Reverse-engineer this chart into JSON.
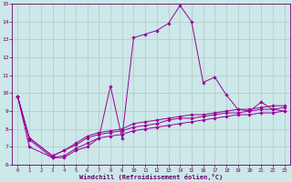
{
  "xlabel": "Windchill (Refroidissement éolien,°C)",
  "background_color": "#cce8e8",
  "grid_color": "#b0c8c8",
  "line_color": "#990099",
  "tick_color": "#660066",
  "spine_color": "#660066",
  "xlim": [
    -0.5,
    23.5
  ],
  "ylim": [
    6,
    15
  ],
  "xticks": [
    0,
    1,
    2,
    3,
    4,
    5,
    6,
    7,
    8,
    9,
    10,
    11,
    12,
    13,
    14,
    15,
    16,
    17,
    18,
    19,
    20,
    21,
    22,
    23
  ],
  "yticks": [
    6,
    7,
    8,
    9,
    10,
    11,
    12,
    13,
    14,
    15
  ],
  "series": [
    {
      "x": [
        0,
        1,
        3,
        4,
        5,
        6,
        7,
        8,
        9,
        10,
        11,
        12,
        13,
        14,
        15,
        16,
        17,
        18,
        19,
        20,
        21,
        22,
        23
      ],
      "y": [
        9.8,
        7.0,
        6.4,
        6.4,
        6.8,
        7.0,
        7.5,
        10.4,
        7.5,
        13.1,
        13.3,
        13.5,
        13.9,
        14.9,
        14.0,
        10.6,
        10.9,
        9.9,
        9.1,
        9.0,
        9.5,
        9.1,
        9.0
      ]
    },
    {
      "x": [
        0,
        1,
        3,
        4,
        5,
        6,
        7,
        8,
        9,
        10,
        11,
        12,
        13,
        14,
        15,
        16,
        17,
        18,
        19,
        20,
        21,
        22,
        23
      ],
      "y": [
        9.8,
        7.5,
        6.5,
        6.8,
        7.2,
        7.6,
        7.8,
        7.9,
        8.0,
        8.3,
        8.4,
        8.5,
        8.6,
        8.7,
        8.8,
        8.8,
        8.9,
        9.0,
        9.1,
        9.1,
        9.2,
        9.3,
        9.3
      ]
    },
    {
      "x": [
        0,
        1,
        3,
        4,
        5,
        6,
        7,
        8,
        9,
        10,
        11,
        12,
        13,
        14,
        15,
        16,
        17,
        18,
        19,
        20,
        21,
        22,
        23
      ],
      "y": [
        9.8,
        7.5,
        6.5,
        6.8,
        7.1,
        7.5,
        7.7,
        7.8,
        7.9,
        8.1,
        8.2,
        8.3,
        8.5,
        8.6,
        8.6,
        8.7,
        8.8,
        8.9,
        8.9,
        9.0,
        9.1,
        9.1,
        9.2
      ]
    },
    {
      "x": [
        0,
        1,
        3,
        4,
        5,
        6,
        7,
        8,
        9,
        10,
        11,
        12,
        13,
        14,
        15,
        16,
        17,
        18,
        19,
        20,
        21,
        22,
        23
      ],
      "y": [
        9.8,
        7.4,
        6.4,
        6.5,
        6.9,
        7.2,
        7.5,
        7.6,
        7.7,
        7.9,
        8.0,
        8.1,
        8.2,
        8.3,
        8.4,
        8.5,
        8.6,
        8.7,
        8.8,
        8.8,
        8.9,
        8.9,
        9.0
      ]
    }
  ]
}
